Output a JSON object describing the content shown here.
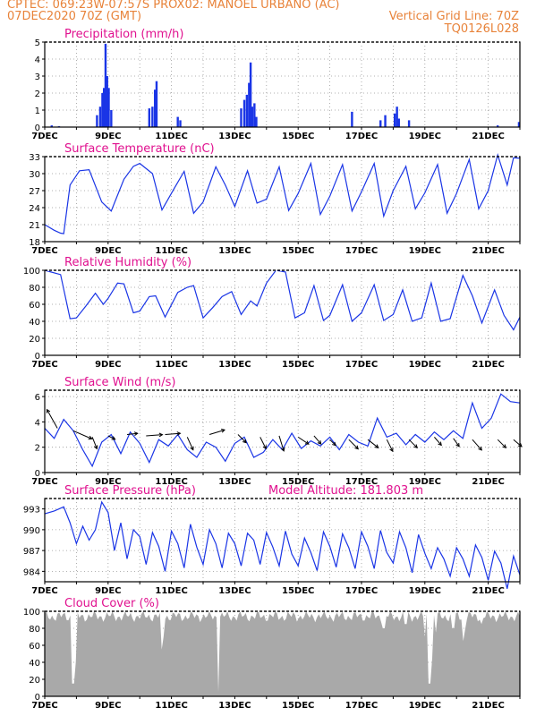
{
  "header": {
    "line1_left": "CPTEC:   069:23W-07:57S   PROX02: MANOEL URBANO (AC)",
    "line2_left": "07DEC2020 70Z (GMT)",
    "line2_right": "Vertical Grid Line: 70Z",
    "line3_right": "TQ0126L028"
  },
  "x_labels": [
    "7DEC",
    "9DEC",
    "11DEC",
    "13DEC",
    "15DEC",
    "17DEC",
    "19DEC",
    "21DEC"
  ],
  "colors": {
    "line": "#1a35e6",
    "bar": "#1a35e6",
    "cloud": "#a9a9a9",
    "title": "#e0118f",
    "header": "#e8833a"
  },
  "chart_data": [
    {
      "type": "bar",
      "title": "Precipitation (mm/h)",
      "ylim": [
        0,
        5
      ],
      "yticks": [
        0,
        1,
        2,
        3,
        4,
        5
      ],
      "x_range": [
        0,
        15
      ],
      "x_unit": "days since 7DEC2020",
      "peaks": [
        {
          "x": 0.22,
          "v": 0.1
        },
        {
          "x": 0.45,
          "v": 0.05
        },
        {
          "x": 1.65,
          "v": 0.7
        },
        {
          "x": 1.75,
          "v": 1.2
        },
        {
          "x": 1.82,
          "v": 2.0
        },
        {
          "x": 1.87,
          "v": 2.3
        },
        {
          "x": 1.92,
          "v": 4.9
        },
        {
          "x": 1.97,
          "v": 3.0
        },
        {
          "x": 2.02,
          "v": 2.3
        },
        {
          "x": 2.1,
          "v": 1.0
        },
        {
          "x": 3.3,
          "v": 1.1
        },
        {
          "x": 3.4,
          "v": 1.2
        },
        {
          "x": 3.48,
          "v": 2.2
        },
        {
          "x": 3.53,
          "v": 2.7
        },
        {
          "x": 4.2,
          "v": 0.6
        },
        {
          "x": 4.28,
          "v": 0.4
        },
        {
          "x": 6.2,
          "v": 1.1
        },
        {
          "x": 6.3,
          "v": 1.6
        },
        {
          "x": 6.38,
          "v": 1.9
        },
        {
          "x": 6.45,
          "v": 2.6
        },
        {
          "x": 6.5,
          "v": 3.8
        },
        {
          "x": 6.55,
          "v": 1.2
        },
        {
          "x": 6.62,
          "v": 1.4
        },
        {
          "x": 6.68,
          "v": 0.6
        },
        {
          "x": 9.7,
          "v": 0.9
        },
        {
          "x": 10.6,
          "v": 0.4
        },
        {
          "x": 10.75,
          "v": 0.7
        },
        {
          "x": 11.05,
          "v": 0.8
        },
        {
          "x": 11.12,
          "v": 1.2
        },
        {
          "x": 11.18,
          "v": 0.5
        },
        {
          "x": 11.5,
          "v": 0.4
        },
        {
          "x": 14.3,
          "v": 0.1
        },
        {
          "x": 14.97,
          "v": 0.3
        }
      ]
    },
    {
      "type": "line",
      "title": "Surface Temperature (nC)",
      "ylim": [
        18,
        33
      ],
      "yticks": [
        18,
        21,
        24,
        27,
        30,
        33
      ],
      "x_range": [
        0,
        15
      ],
      "points": [
        [
          0,
          21
        ],
        [
          0.3,
          20
        ],
        [
          0.5,
          19.5
        ],
        [
          0.6,
          19.4
        ],
        [
          0.8,
          28
        ],
        [
          1.1,
          30.5
        ],
        [
          1.4,
          30.7
        ],
        [
          1.8,
          25
        ],
        [
          2.1,
          23.4
        ],
        [
          2.5,
          29
        ],
        [
          2.8,
          31.3
        ],
        [
          3.0,
          31.8
        ],
        [
          3.4,
          30
        ],
        [
          3.7,
          23.6
        ],
        [
          4.1,
          27.5
        ],
        [
          4.4,
          30.4
        ],
        [
          4.7,
          23
        ],
        [
          5.0,
          25
        ],
        [
          5.4,
          31.2
        ],
        [
          5.7,
          28
        ],
        [
          6.0,
          24.2
        ],
        [
          6.4,
          30.5
        ],
        [
          6.7,
          24.8
        ],
        [
          7.0,
          25.5
        ],
        [
          7.4,
          31.2
        ],
        [
          7.7,
          23.5
        ],
        [
          8.0,
          26.5
        ],
        [
          8.4,
          31.8
        ],
        [
          8.7,
          22.8
        ],
        [
          9.0,
          26
        ],
        [
          9.4,
          31.6
        ],
        [
          9.7,
          23.4
        ],
        [
          10.0,
          26.8
        ],
        [
          10.4,
          31.8
        ],
        [
          10.7,
          22.5
        ],
        [
          11.0,
          27
        ],
        [
          11.4,
          31.3
        ],
        [
          11.7,
          23.8
        ],
        [
          12.0,
          26.6
        ],
        [
          12.4,
          31.6
        ],
        [
          12.7,
          23
        ],
        [
          13.0,
          26.5
        ],
        [
          13.4,
          32.5
        ],
        [
          13.7,
          23.8
        ],
        [
          14.0,
          27
        ],
        [
          14.3,
          33.3
        ],
        [
          14.6,
          28
        ],
        [
          14.8,
          32.8
        ],
        [
          15.0,
          32.7
        ]
      ]
    },
    {
      "type": "line",
      "title": "Relative Humidity (%)",
      "ylim": [
        0,
        100
      ],
      "yticks": [
        0,
        20,
        40,
        60,
        80,
        100
      ],
      "x_range": [
        0,
        15
      ],
      "points": [
        [
          0,
          100
        ],
        [
          0.5,
          95
        ],
        [
          0.8,
          43
        ],
        [
          1.0,
          44
        ],
        [
          1.3,
          58
        ],
        [
          1.6,
          73
        ],
        [
          1.85,
          60
        ],
        [
          2.0,
          67
        ],
        [
          2.3,
          85
        ],
        [
          2.5,
          84
        ],
        [
          2.8,
          50
        ],
        [
          3.0,
          52
        ],
        [
          3.3,
          69
        ],
        [
          3.5,
          70
        ],
        [
          3.8,
          45
        ],
        [
          4.2,
          74
        ],
        [
          4.5,
          80
        ],
        [
          4.7,
          82
        ],
        [
          5.0,
          44
        ],
        [
          5.3,
          56
        ],
        [
          5.6,
          69
        ],
        [
          5.9,
          75
        ],
        [
          6.2,
          48
        ],
        [
          6.5,
          64
        ],
        [
          6.7,
          58
        ],
        [
          7.0,
          85
        ],
        [
          7.3,
          100
        ],
        [
          7.6,
          98
        ],
        [
          7.9,
          44
        ],
        [
          8.2,
          50
        ],
        [
          8.5,
          82
        ],
        [
          8.8,
          41
        ],
        [
          9.0,
          47
        ],
        [
          9.4,
          83
        ],
        [
          9.7,
          40
        ],
        [
          10.0,
          50
        ],
        [
          10.4,
          83
        ],
        [
          10.7,
          41
        ],
        [
          11.0,
          48
        ],
        [
          11.3,
          77
        ],
        [
          11.6,
          40
        ],
        [
          11.9,
          44
        ],
        [
          12.2,
          85
        ],
        [
          12.5,
          40
        ],
        [
          12.8,
          43
        ],
        [
          13.2,
          94
        ],
        [
          13.5,
          70
        ],
        [
          13.8,
          38
        ],
        [
          14.2,
          77
        ],
        [
          14.5,
          47
        ],
        [
          14.8,
          30
        ],
        [
          15.0,
          45
        ]
      ]
    },
    {
      "type": "line",
      "title": "Surface Wind (m/s)",
      "ylim": [
        0,
        6.5
      ],
      "yticks": [
        0,
        2,
        4,
        6
      ],
      "x_range": [
        0,
        15
      ],
      "points": [
        [
          0,
          3.5
        ],
        [
          0.3,
          2.7
        ],
        [
          0.6,
          4.2
        ],
        [
          0.9,
          3.3
        ],
        [
          1.2,
          1.8
        ],
        [
          1.5,
          0.5
        ],
        [
          1.8,
          2.4
        ],
        [
          2.1,
          3.0
        ],
        [
          2.4,
          1.5
        ],
        [
          2.7,
          3.2
        ],
        [
          3.0,
          2.3
        ],
        [
          3.3,
          0.8
        ],
        [
          3.6,
          2.6
        ],
        [
          3.9,
          2.1
        ],
        [
          4.2,
          3.0
        ],
        [
          4.5,
          1.8
        ],
        [
          4.8,
          1.2
        ],
        [
          5.1,
          2.4
        ],
        [
          5.4,
          2.0
        ],
        [
          5.7,
          0.9
        ],
        [
          6.0,
          2.3
        ],
        [
          6.3,
          2.8
        ],
        [
          6.6,
          1.2
        ],
        [
          6.9,
          1.6
        ],
        [
          7.2,
          2.6
        ],
        [
          7.5,
          1.8
        ],
        [
          7.8,
          3.1
        ],
        [
          8.1,
          1.9
        ],
        [
          8.4,
          2.5
        ],
        [
          8.7,
          2.1
        ],
        [
          9.0,
          2.8
        ],
        [
          9.3,
          1.8
        ],
        [
          9.6,
          3.0
        ],
        [
          9.9,
          2.4
        ],
        [
          10.2,
          2.1
        ],
        [
          10.5,
          4.3
        ],
        [
          10.8,
          2.8
        ],
        [
          11.1,
          3.1
        ],
        [
          11.4,
          2.2
        ],
        [
          11.7,
          3.0
        ],
        [
          12.0,
          2.4
        ],
        [
          12.3,
          3.2
        ],
        [
          12.6,
          2.6
        ],
        [
          12.9,
          3.3
        ],
        [
          13.2,
          2.7
        ],
        [
          13.5,
          5.5
        ],
        [
          13.8,
          3.5
        ],
        [
          14.1,
          4.3
        ],
        [
          14.4,
          6.2
        ],
        [
          14.7,
          5.6
        ],
        [
          15.0,
          5.5
        ]
      ],
      "arrows": [
        [
          0.4,
          3.5,
          -0.9,
          1.6
        ],
        [
          0.9,
          3.3,
          1.6,
          -0.7
        ],
        [
          1.5,
          2.8,
          0.4,
          -1.0
        ],
        [
          2.0,
          2.9,
          0.6,
          -0.3
        ],
        [
          2.6,
          3.0,
          0.9,
          0.1
        ],
        [
          3.2,
          2.9,
          1.4,
          0.1
        ],
        [
          3.8,
          3.0,
          1.3,
          0.1
        ],
        [
          4.5,
          2.8,
          0.5,
          -1.1
        ],
        [
          5.2,
          3.0,
          1.3,
          0.4
        ],
        [
          6.1,
          3.0,
          0.7,
          -0.7
        ],
        [
          6.8,
          2.8,
          0.5,
          -1.0
        ],
        [
          7.4,
          2.9,
          0.4,
          -1.3
        ],
        [
          8.0,
          2.8,
          0.9,
          -0.6
        ],
        [
          8.5,
          2.9,
          0.6,
          -0.7
        ],
        [
          9.0,
          2.6,
          0.5,
          -0.5
        ],
        [
          9.6,
          2.6,
          0.8,
          -0.8
        ],
        [
          10.2,
          2.6,
          0.9,
          -0.7
        ],
        [
          10.8,
          2.6,
          0.5,
          -1.0
        ],
        [
          11.5,
          2.6,
          0.7,
          -0.7
        ],
        [
          12.3,
          2.8,
          0.6,
          -0.7
        ],
        [
          12.9,
          2.7,
          0.5,
          -0.7
        ],
        [
          13.5,
          2.6,
          0.8,
          -0.9
        ],
        [
          14.3,
          2.6,
          0.7,
          -0.7
        ],
        [
          14.8,
          2.6,
          0.7,
          -0.6
        ]
      ]
    },
    {
      "type": "line",
      "title": "Surface Pressure (hPa)",
      "annotation": "Model Altitude: 181.803 m",
      "ylim": [
        982.5,
        994.5
      ],
      "yticks": [
        984,
        987,
        990,
        993
      ],
      "x_range": [
        0,
        15
      ],
      "points": [
        [
          0,
          992.3
        ],
        [
          0.3,
          992.7
        ],
        [
          0.6,
          993.3
        ],
        [
          0.8,
          991
        ],
        [
          1.0,
          988
        ],
        [
          1.2,
          990.5
        ],
        [
          1.4,
          988.5
        ],
        [
          1.6,
          990
        ],
        [
          1.8,
          994
        ],
        [
          2.0,
          992.5
        ],
        [
          2.2,
          987
        ],
        [
          2.4,
          991
        ],
        [
          2.6,
          985.8
        ],
        [
          2.8,
          990
        ],
        [
          3.0,
          989
        ],
        [
          3.2,
          985
        ],
        [
          3.4,
          989.6
        ],
        [
          3.6,
          987.6
        ],
        [
          3.8,
          984
        ],
        [
          4.0,
          989.8
        ],
        [
          4.2,
          988
        ],
        [
          4.4,
          984.5
        ],
        [
          4.6,
          990.8
        ],
        [
          4.8,
          987.5
        ],
        [
          5.0,
          985
        ],
        [
          5.2,
          990
        ],
        [
          5.4,
          988
        ],
        [
          5.6,
          984.5
        ],
        [
          5.8,
          989.5
        ],
        [
          6.0,
          988
        ],
        [
          6.2,
          984.8
        ],
        [
          6.4,
          989.5
        ],
        [
          6.6,
          988.5
        ],
        [
          6.8,
          985
        ],
        [
          7.0,
          989.6
        ],
        [
          7.2,
          987.5
        ],
        [
          7.4,
          984.8
        ],
        [
          7.6,
          989.8
        ],
        [
          7.8,
          986.5
        ],
        [
          8.0,
          984.8
        ],
        [
          8.2,
          988.8
        ],
        [
          8.4,
          986.7
        ],
        [
          8.6,
          984.1
        ],
        [
          8.8,
          989.7
        ],
        [
          9.0,
          987.6
        ],
        [
          9.2,
          984.6
        ],
        [
          9.4,
          989.4
        ],
        [
          9.6,
          987.4
        ],
        [
          9.8,
          984.4
        ],
        [
          10.0,
          989.7
        ],
        [
          10.2,
          987.6
        ],
        [
          10.4,
          984.4
        ],
        [
          10.6,
          989.9
        ],
        [
          10.8,
          986.7
        ],
        [
          11.0,
          985.2
        ],
        [
          11.2,
          989.7
        ],
        [
          11.4,
          987.4
        ],
        [
          11.6,
          983.8
        ],
        [
          11.8,
          989.3
        ],
        [
          12.0,
          986.6
        ],
        [
          12.2,
          984.4
        ],
        [
          12.4,
          987.4
        ],
        [
          12.6,
          985.8
        ],
        [
          12.8,
          983.3
        ],
        [
          13.0,
          987.4
        ],
        [
          13.2,
          985.8
        ],
        [
          13.4,
          983.3
        ],
        [
          13.6,
          987.8
        ],
        [
          13.8,
          986
        ],
        [
          14.0,
          982.7
        ],
        [
          14.2,
          986.9
        ],
        [
          14.4,
          985.2
        ],
        [
          14.6,
          981.5
        ],
        [
          14.8,
          986.2
        ],
        [
          15.0,
          983.5
        ]
      ]
    },
    {
      "type": "area",
      "title": "Cloud Cover (%)",
      "ylim": [
        0,
        100
      ],
      "yticks": [
        0,
        20,
        40,
        60,
        80,
        100
      ],
      "x_range": [
        0,
        15
      ],
      "dips": [
        [
          0.85,
          30
        ],
        [
          0.9,
          15
        ],
        [
          0.95,
          40
        ],
        [
          1.0,
          75
        ],
        [
          3.7,
          55
        ],
        [
          3.75,
          70
        ],
        [
          5.47,
          5
        ],
        [
          5.5,
          12
        ],
        [
          10.7,
          80
        ],
        [
          11.4,
          85
        ],
        [
          12.0,
          70
        ],
        [
          12.1,
          40
        ],
        [
          12.15,
          15
        ],
        [
          12.25,
          45
        ],
        [
          12.35,
          75
        ],
        [
          12.9,
          80
        ],
        [
          13.2,
          65
        ],
        [
          13.25,
          78
        ],
        [
          13.8,
          85
        ]
      ]
    }
  ]
}
